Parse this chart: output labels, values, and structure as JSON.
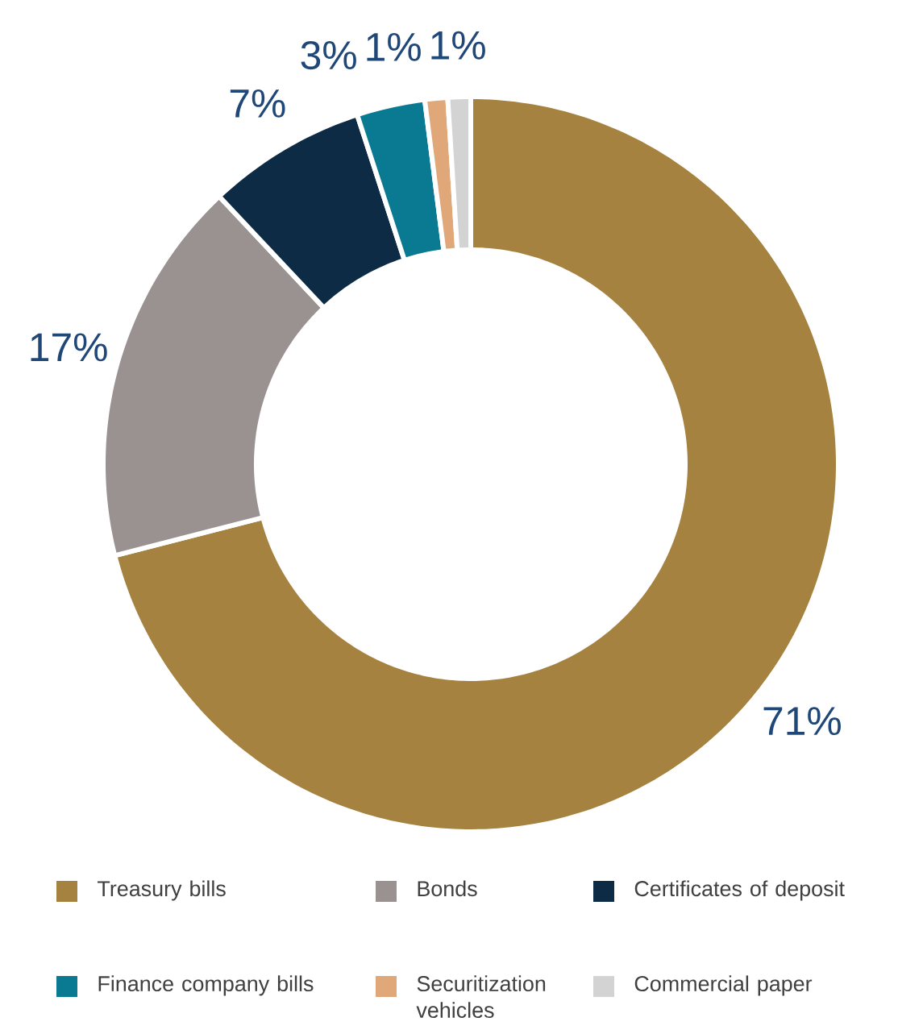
{
  "chart_data": {
    "type": "donut",
    "categories": [
      "Treasury bills",
      "Bonds",
      "Certificates of deposit",
      "Finance company bills",
      "Securitization vehicles",
      "Commercial paper"
    ],
    "values": [
      71,
      17,
      7,
      3,
      1,
      1
    ],
    "colors": [
      "#a5823f",
      "#9a9191",
      "#0d2b45",
      "#0a7a93",
      "#e0a878",
      "#d3d3d3"
    ],
    "value_labels": [
      "71%",
      "17%",
      "7%",
      "3%",
      "1%",
      "1%"
    ],
    "legend": "bottom"
  }
}
